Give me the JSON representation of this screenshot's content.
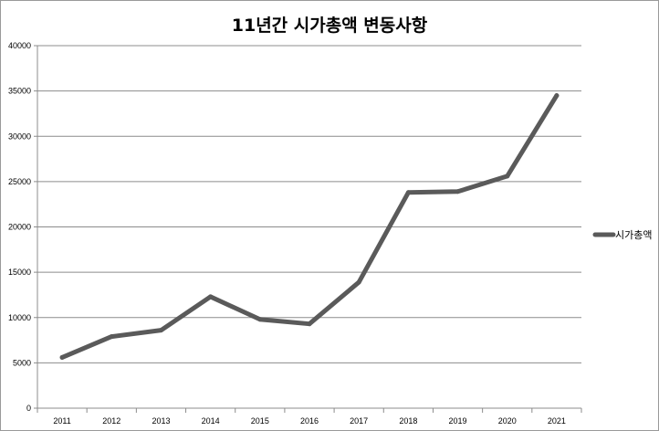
{
  "chart_data": {
    "type": "line",
    "title": "11년간 시가총액 변동사항",
    "xlabel": "",
    "ylabel": "",
    "categories": [
      "2011",
      "2012",
      "2013",
      "2014",
      "2015",
      "2016",
      "2017",
      "2018",
      "2019",
      "2020",
      "2021"
    ],
    "series": [
      {
        "name": "시가총액",
        "values": [
          5600,
          7900,
          8600,
          12300,
          9800,
          9300,
          13900,
          23800,
          23900,
          25600,
          34500
        ]
      }
    ],
    "ylim": [
      0,
      40000
    ],
    "yticks": [
      "0",
      "5000",
      "10000",
      "15000",
      "20000",
      "25000",
      "30000",
      "35000",
      "40000"
    ],
    "grid": "horizontal",
    "legend": "right",
    "line_color": "#5a5a5a",
    "grid_color": "#8c8c8c"
  }
}
